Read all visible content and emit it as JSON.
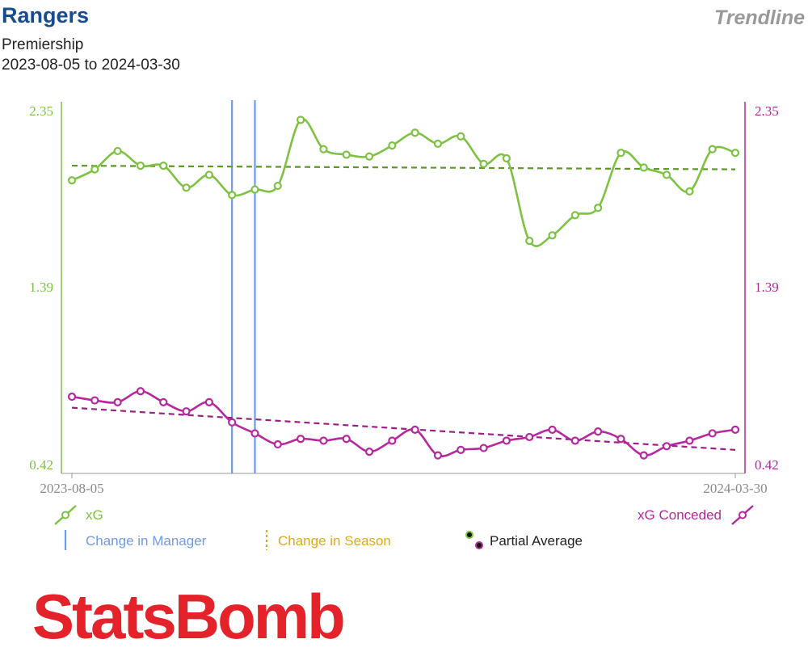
{
  "header": {
    "title": "Rangers",
    "competition": "Premiership",
    "date_range": "2023-08-05 to 2024-03-30",
    "tag": "Trendline"
  },
  "legend": {
    "xg": "xG",
    "xg_conceded": "xG Conceded",
    "change_manager": "Change in Manager",
    "change_season": "Change in Season",
    "partial_average": "Partial Average"
  },
  "logo": {
    "text": "StatsBomb"
  },
  "colors": {
    "xg": "#7dc242",
    "xg_trend": "#5a9a1e",
    "xg_conceded": "#b5289e",
    "xg_conceded_trend": "#9a2086",
    "manager_line": "#6f9be6",
    "season": "#e0a91c",
    "axis_text": "#8a8a8a"
  },
  "chart_data": {
    "type": "line",
    "x_first_label": "2023-08-05",
    "x_last_label": "2024-03-30",
    "y_ticks": [
      2.35,
      1.39,
      0.42
    ],
    "ylim": [
      0.42,
      2.35
    ],
    "manager_changes_after_match": [
      7,
      8
    ],
    "series": [
      {
        "name": "xG",
        "values": [
          1.97,
          2.03,
          2.13,
          2.05,
          2.05,
          1.93,
          2.0,
          1.89,
          1.92,
          1.94,
          2.3,
          2.14,
          2.11,
          2.1,
          2.16,
          2.23,
          2.17,
          2.21,
          2.06,
          2.09,
          1.64,
          1.67,
          1.78,
          1.82,
          2.12,
          2.04,
          2.0,
          1.91,
          2.14,
          2.12
        ],
        "trend": [
          2.05,
          2.03
        ]
      },
      {
        "name": "xG Conceded",
        "values": [
          0.79,
          0.77,
          0.76,
          0.82,
          0.76,
          0.71,
          0.76,
          0.65,
          0.59,
          0.53,
          0.56,
          0.55,
          0.56,
          0.49,
          0.55,
          0.61,
          0.47,
          0.5,
          0.51,
          0.55,
          0.57,
          0.61,
          0.55,
          0.6,
          0.56,
          0.47,
          0.52,
          0.55,
          0.59,
          0.61
        ],
        "trend": [
          0.73,
          0.5
        ]
      }
    ]
  }
}
